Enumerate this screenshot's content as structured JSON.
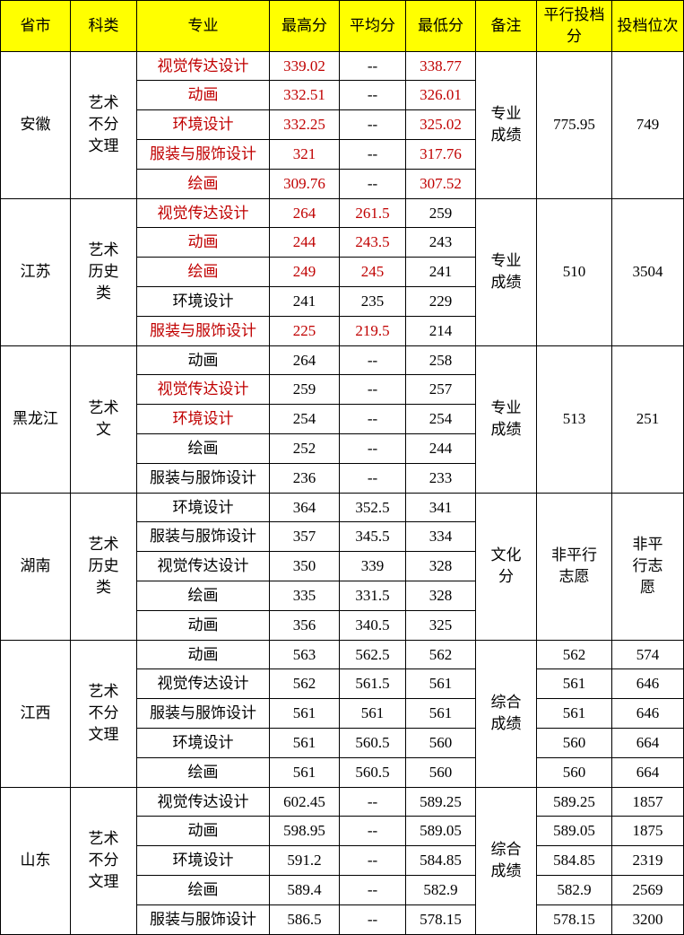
{
  "headers": {
    "province": "省市",
    "category": "科类",
    "major": "专业",
    "max": "最高分",
    "avg": "平均分",
    "min": "最低分",
    "note": "备注",
    "pscore": "平行投档分",
    "rank": "投档位次"
  },
  "colors": {
    "header_bg": "#ffff00",
    "text": "#000000",
    "highlight": "#c00000",
    "border": "#000000",
    "background": "#ffffff"
  },
  "font": {
    "family": "SimSun",
    "size_pt": 13
  },
  "provinces": [
    {
      "name": "安徽",
      "category": "艺术不分文理",
      "note": "专业成绩",
      "pscore": "775.95",
      "rank": "749",
      "rows": [
        {
          "major": "视觉传达设计",
          "max": "339.02",
          "avg": "--",
          "min": "338.77",
          "hl": [
            "major",
            "max",
            "min"
          ]
        },
        {
          "major": "动画",
          "max": "332.51",
          "avg": "--",
          "min": "326.01",
          "hl": [
            "major",
            "max",
            "min"
          ]
        },
        {
          "major": "环境设计",
          "max": "332.25",
          "avg": "--",
          "min": "325.02",
          "hl": [
            "major",
            "max",
            "min"
          ]
        },
        {
          "major": "服装与服饰设计",
          "max": "321",
          "avg": "--",
          "min": "317.76",
          "hl": [
            "major",
            "max",
            "min"
          ]
        },
        {
          "major": "绘画",
          "max": "309.76",
          "avg": "--",
          "min": "307.52",
          "hl": [
            "major",
            "max",
            "min"
          ]
        }
      ]
    },
    {
      "name": "江苏",
      "category": "艺术历史类",
      "note": "专业成绩",
      "pscore": "510",
      "rank": "3504",
      "rows": [
        {
          "major": "视觉传达设计",
          "max": "264",
          "avg": "261.5",
          "min": "259",
          "hl": [
            "major",
            "max",
            "avg"
          ]
        },
        {
          "major": "动画",
          "max": "244",
          "avg": "243.5",
          "min": "243",
          "hl": [
            "major",
            "max",
            "avg"
          ]
        },
        {
          "major": "绘画",
          "max": "249",
          "avg": "245",
          "min": "241",
          "hl": [
            "major",
            "max",
            "avg"
          ]
        },
        {
          "major": "环境设计",
          "max": "241",
          "avg": "235",
          "min": "229",
          "hl": []
        },
        {
          "major": "服装与服饰设计",
          "max": "225",
          "avg": "219.5",
          "min": "214",
          "hl": [
            "major",
            "max",
            "avg"
          ]
        }
      ]
    },
    {
      "name": "黑龙江",
      "category": "艺术文",
      "note": "专业成绩",
      "pscore": "513",
      "rank": "251",
      "rows": [
        {
          "major": "动画",
          "max": "264",
          "avg": "--",
          "min": "258",
          "hl": []
        },
        {
          "major": "视觉传达设计",
          "max": "259",
          "avg": "--",
          "min": "257",
          "hl": [
            "major"
          ]
        },
        {
          "major": "环境设计",
          "max": "254",
          "avg": "--",
          "min": "254",
          "hl": [
            "major"
          ]
        },
        {
          "major": "绘画",
          "max": "252",
          "avg": "--",
          "min": "244",
          "hl": []
        },
        {
          "major": "服装与服饰设计",
          "max": "236",
          "avg": "--",
          "min": "233",
          "hl": []
        }
      ]
    },
    {
      "name": "湖南",
      "category": "艺术历史类",
      "note": "文化分",
      "pscore": "非平行志愿",
      "rank": "非平行志愿",
      "rows": [
        {
          "major": "环境设计",
          "max": "364",
          "avg": "352.5",
          "min": "341",
          "hl": []
        },
        {
          "major": "服装与服饰设计",
          "max": "357",
          "avg": "345.5",
          "min": "334",
          "hl": []
        },
        {
          "major": "视觉传达设计",
          "max": "350",
          "avg": "339",
          "min": "328",
          "hl": []
        },
        {
          "major": "绘画",
          "max": "335",
          "avg": "331.5",
          "min": "328",
          "hl": []
        },
        {
          "major": "动画",
          "max": "356",
          "avg": "340.5",
          "min": "325",
          "hl": []
        }
      ]
    },
    {
      "name": "江西",
      "category": "艺术不分文理",
      "note": "综合成绩",
      "per_row_pscore": true,
      "rows": [
        {
          "major": "动画",
          "max": "563",
          "avg": "562.5",
          "min": "562",
          "pscore": "562",
          "rank": "574",
          "hl": []
        },
        {
          "major": "视觉传达设计",
          "max": "562",
          "avg": "561.5",
          "min": "561",
          "pscore": "561",
          "rank": "646",
          "hl": []
        },
        {
          "major": "服装与服饰设计",
          "max": "561",
          "avg": "561",
          "min": "561",
          "pscore": "561",
          "rank": "646",
          "hl": []
        },
        {
          "major": "环境设计",
          "max": "561",
          "avg": "560.5",
          "min": "560",
          "pscore": "560",
          "rank": "664",
          "hl": []
        },
        {
          "major": "绘画",
          "max": "561",
          "avg": "560.5",
          "min": "560",
          "pscore": "560",
          "rank": "664",
          "hl": []
        }
      ]
    },
    {
      "name": "山东",
      "category": "艺术不分文理",
      "note": "综合成绩",
      "per_row_pscore": true,
      "rows": [
        {
          "major": "视觉传达设计",
          "max": "602.45",
          "avg": "--",
          "min": "589.25",
          "pscore": "589.25",
          "rank": "1857",
          "hl": []
        },
        {
          "major": "动画",
          "max": "598.95",
          "avg": "--",
          "min": "589.05",
          "pscore": "589.05",
          "rank": "1875",
          "hl": []
        },
        {
          "major": "环境设计",
          "max": "591.2",
          "avg": "--",
          "min": "584.85",
          "pscore": "584.85",
          "rank": "2319",
          "hl": []
        },
        {
          "major": "绘画",
          "max": "589.4",
          "avg": "--",
          "min": "582.9",
          "pscore": "582.9",
          "rank": "2569",
          "hl": []
        },
        {
          "major": "服装与服饰设计",
          "max": "586.5",
          "avg": "--",
          "min": "578.15",
          "pscore": "578.15",
          "rank": "3200",
          "hl": []
        }
      ]
    }
  ]
}
